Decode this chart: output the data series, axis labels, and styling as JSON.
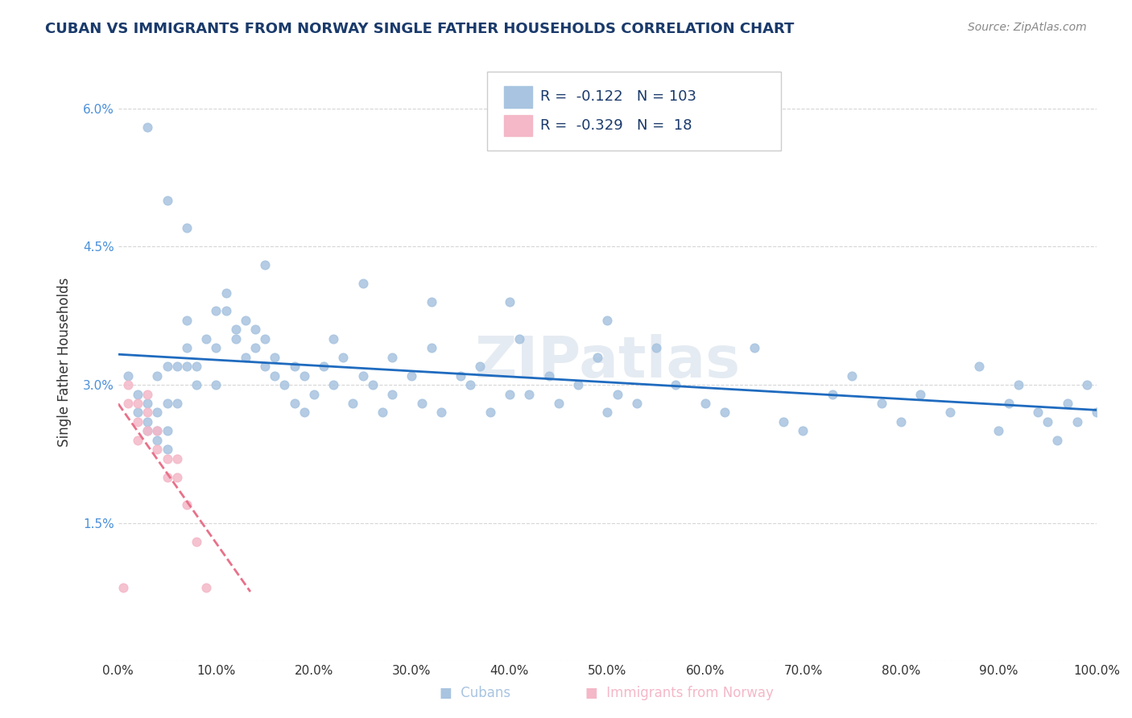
{
  "title": "CUBAN VS IMMIGRANTS FROM NORWAY SINGLE FATHER HOUSEHOLDS CORRELATION CHART",
  "source": "Source: ZipAtlas.com",
  "xlabel": "",
  "ylabel": "Single Father Households",
  "xlim": [
    0,
    1.0
  ],
  "ylim": [
    0,
    0.065
  ],
  "xticks": [
    0.0,
    0.1,
    0.2,
    0.3,
    0.4,
    0.5,
    0.6,
    0.7,
    0.8,
    0.9,
    1.0
  ],
  "xticklabels": [
    "0.0%",
    "10.0%",
    "20.0%",
    "30.0%",
    "40.0%",
    "50.0%",
    "60.0%",
    "70.0%",
    "80.0%",
    "90.0%",
    "100.0%"
  ],
  "yticks": [
    0.0,
    0.015,
    0.03,
    0.045,
    0.06
  ],
  "yticklabels": [
    "",
    "1.5%",
    "3.0%",
    "4.5%",
    "6.0%"
  ],
  "legend_r_cuban": "-0.122",
  "legend_n_cuban": "103",
  "legend_r_norway": "-0.329",
  "legend_n_norway": "18",
  "cuban_color": "#a8c4e0",
  "norway_color": "#f4b8c8",
  "cuban_line_color": "#1f6bbf",
  "norway_line_color": "#e8718a",
  "watermark": "ZIPatlas",
  "cuban_x": [
    0.01,
    0.02,
    0.02,
    0.03,
    0.03,
    0.03,
    0.04,
    0.04,
    0.04,
    0.04,
    0.05,
    0.05,
    0.05,
    0.05,
    0.06,
    0.06,
    0.07,
    0.07,
    0.07,
    0.08,
    0.08,
    0.09,
    0.1,
    0.1,
    0.1,
    0.11,
    0.11,
    0.12,
    0.12,
    0.13,
    0.13,
    0.14,
    0.14,
    0.15,
    0.15,
    0.16,
    0.16,
    0.17,
    0.18,
    0.18,
    0.19,
    0.19,
    0.2,
    0.21,
    0.22,
    0.22,
    0.23,
    0.24,
    0.25,
    0.26,
    0.27,
    0.28,
    0.28,
    0.3,
    0.31,
    0.32,
    0.33,
    0.35,
    0.36,
    0.37,
    0.38,
    0.4,
    0.41,
    0.42,
    0.44,
    0.45,
    0.47,
    0.49,
    0.5,
    0.51,
    0.53,
    0.55,
    0.57,
    0.6,
    0.62,
    0.65,
    0.68,
    0.7,
    0.73,
    0.75,
    0.78,
    0.8,
    0.82,
    0.85,
    0.88,
    0.9,
    0.91,
    0.92,
    0.94,
    0.95,
    0.96,
    0.97,
    0.98,
    0.99,
    1.0,
    0.03,
    0.05,
    0.07,
    0.15,
    0.25,
    0.32,
    0.4,
    0.5
  ],
  "cuban_y": [
    0.031,
    0.027,
    0.029,
    0.025,
    0.026,
    0.028,
    0.024,
    0.025,
    0.027,
    0.031,
    0.023,
    0.025,
    0.028,
    0.032,
    0.028,
    0.032,
    0.034,
    0.037,
    0.032,
    0.03,
    0.032,
    0.035,
    0.034,
    0.03,
    0.038,
    0.04,
    0.038,
    0.036,
    0.035,
    0.033,
    0.037,
    0.034,
    0.036,
    0.032,
    0.035,
    0.033,
    0.031,
    0.03,
    0.032,
    0.028,
    0.031,
    0.027,
    0.029,
    0.032,
    0.035,
    0.03,
    0.033,
    0.028,
    0.031,
    0.03,
    0.027,
    0.033,
    0.029,
    0.031,
    0.028,
    0.034,
    0.027,
    0.031,
    0.03,
    0.032,
    0.027,
    0.029,
    0.035,
    0.029,
    0.031,
    0.028,
    0.03,
    0.033,
    0.027,
    0.029,
    0.028,
    0.034,
    0.03,
    0.028,
    0.027,
    0.034,
    0.026,
    0.025,
    0.029,
    0.031,
    0.028,
    0.026,
    0.029,
    0.027,
    0.032,
    0.025,
    0.028,
    0.03,
    0.027,
    0.026,
    0.024,
    0.028,
    0.026,
    0.03,
    0.027,
    0.058,
    0.05,
    0.047,
    0.043,
    0.041,
    0.039,
    0.039,
    0.037
  ],
  "norway_x": [
    0.005,
    0.01,
    0.01,
    0.02,
    0.02,
    0.02,
    0.03,
    0.03,
    0.03,
    0.04,
    0.04,
    0.05,
    0.05,
    0.06,
    0.06,
    0.07,
    0.08,
    0.09
  ],
  "norway_y": [
    0.008,
    0.028,
    0.03,
    0.024,
    0.026,
    0.028,
    0.025,
    0.027,
    0.029,
    0.023,
    0.025,
    0.02,
    0.022,
    0.02,
    0.022,
    0.017,
    0.013,
    0.008
  ]
}
